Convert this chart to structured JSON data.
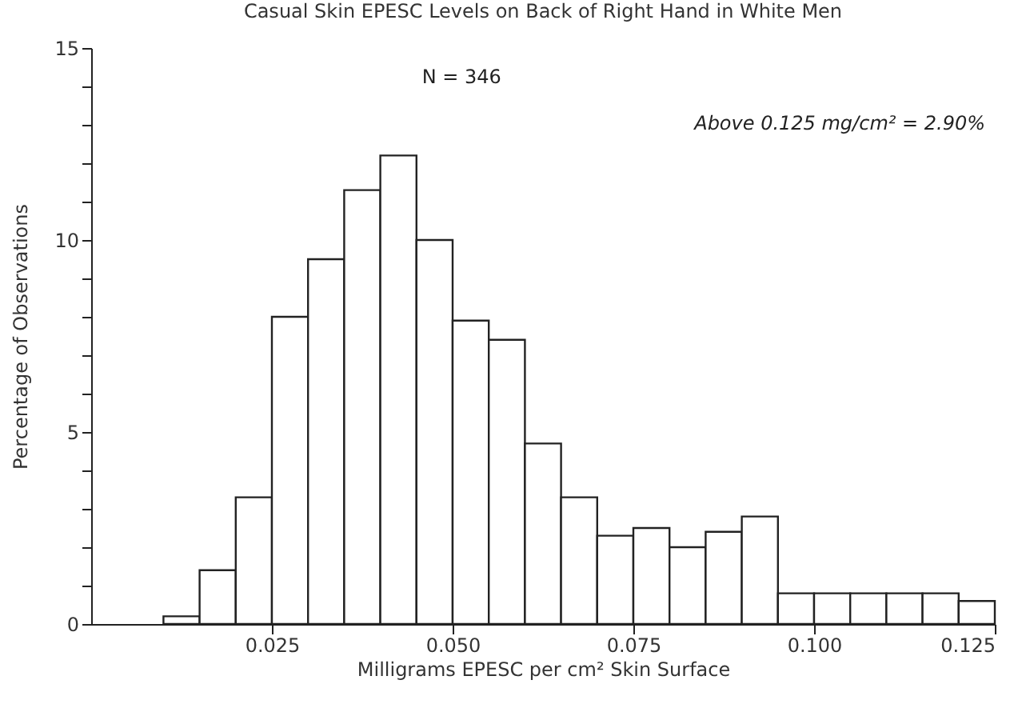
{
  "chart_data": {
    "type": "histogram",
    "title": "Casual Skin EPESC Levels on Back of Right Hand in White Men",
    "xlabel": "Milligrams EPESC per cm² Skin Surface",
    "ylabel": "Percentage of Observations",
    "bins": [
      0.01,
      0.015,
      0.02,
      0.025,
      0.03,
      0.035,
      0.04,
      0.045,
      0.05,
      0.055,
      0.06,
      0.065,
      0.07,
      0.075,
      0.08,
      0.085,
      0.09,
      0.095,
      0.1,
      0.105,
      0.11,
      0.115,
      0.12,
      0.125
    ],
    "values": [
      0.2,
      1.4,
      3.3,
      8.0,
      9.5,
      11.3,
      12.2,
      10.0,
      7.9,
      7.4,
      4.7,
      3.3,
      2.3,
      2.5,
      2.0,
      2.4,
      2.8,
      0.8,
      0.8,
      0.8,
      0.8,
      0.8,
      0.6
    ],
    "color": "#ffffff",
    "xlim": [
      0,
      0.125
    ],
    "xticks": [
      {
        "value": 0.025,
        "label": "0.025"
      },
      {
        "value": 0.05,
        "label": "0.050"
      },
      {
        "value": 0.075,
        "label": "0.075"
      },
      {
        "value": 0.1,
        "label": "0.100"
      },
      {
        "value": 0.125,
        "label": "0.125"
      }
    ],
    "ylim": [
      0,
      15
    ],
    "yticks": [
      0,
      {
        "value": 1,
        "label": null
      },
      {
        "value": 2,
        "label": null
      },
      {
        "value": 3,
        "label": null
      },
      {
        "value": 4,
        "label": null
      },
      5,
      {
        "value": 6,
        "label": null
      },
      {
        "value": 7,
        "label": null
      },
      {
        "value": 8,
        "label": null
      },
      {
        "value": 9,
        "label": null
      },
      10,
      {
        "value": 11,
        "label": null
      },
      {
        "value": 12,
        "label": null
      },
      {
        "value": 13,
        "label": null
      },
      {
        "value": 14,
        "label": null
      },
      15
    ],
    "annotations": [
      "N = 346",
      "Above 0.125 mg/cm² = 2.90%"
    ]
  }
}
